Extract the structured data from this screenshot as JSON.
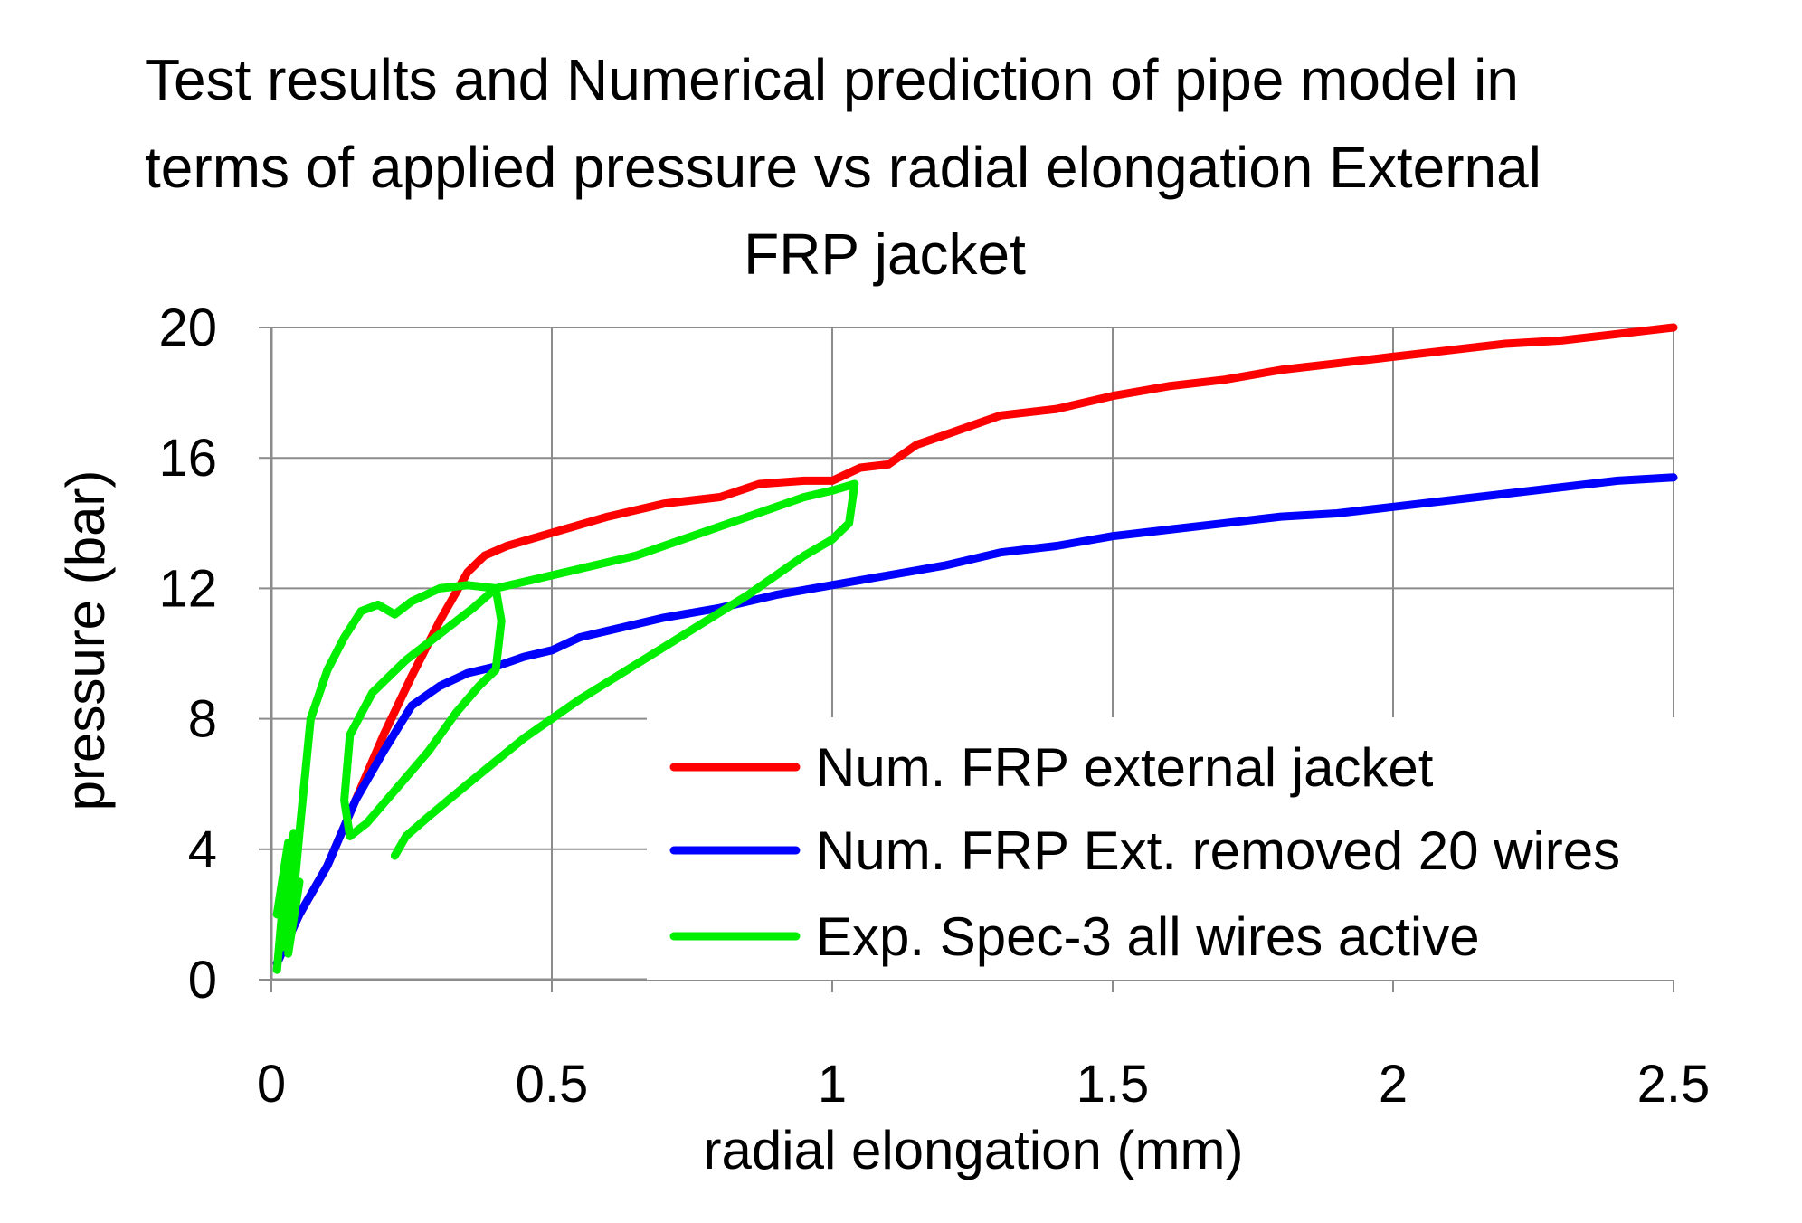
{
  "chart_data": {
    "type": "line",
    "title_lines": [
      "Test results and Numerical prediction of pipe model  in",
      "terms of applied pressure vs radial elongation External",
      "FRP jacket"
    ],
    "xlabel": "radial elongation (mm)",
    "ylabel": "pressure (bar)",
    "xlim": [
      0,
      2.5
    ],
    "ylim": [
      0,
      20
    ],
    "xticks": [
      0,
      0.5,
      1,
      1.5,
      2,
      2.5
    ],
    "xtick_labels": [
      "0",
      "0.5",
      "1",
      "1.5",
      "2",
      "2.5"
    ],
    "yticks": [
      0,
      4,
      8,
      12,
      16,
      20
    ],
    "ytick_labels": [
      "0",
      "4",
      "8",
      "12",
      "16",
      "20"
    ],
    "grid": true,
    "legend_position": "bottom-right",
    "series": [
      {
        "name": "Num. FRP external jacket",
        "color": "#ff0000",
        "x": [
          0.01,
          0.05,
          0.1,
          0.15,
          0.2,
          0.25,
          0.3,
          0.35,
          0.38,
          0.42,
          0.5,
          0.6,
          0.7,
          0.8,
          0.87,
          0.95,
          1.0,
          1.05,
          1.1,
          1.15,
          1.2,
          1.3,
          1.4,
          1.5,
          1.6,
          1.7,
          1.8,
          1.9,
          2.0,
          2.1,
          2.2,
          2.3,
          2.4,
          2.5
        ],
        "y": [
          0.5,
          2.0,
          3.5,
          5.5,
          7.5,
          9.3,
          11.0,
          12.5,
          13.0,
          13.3,
          13.7,
          14.2,
          14.6,
          14.8,
          15.2,
          15.3,
          15.3,
          15.7,
          15.8,
          16.4,
          16.7,
          17.3,
          17.5,
          17.9,
          18.2,
          18.4,
          18.7,
          18.9,
          19.1,
          19.3,
          19.5,
          19.6,
          19.8,
          20.0
        ]
      },
      {
        "name": "Num. FRP Ext. removed 20 wires",
        "color": "#0000ff",
        "x": [
          0.01,
          0.05,
          0.1,
          0.15,
          0.2,
          0.25,
          0.3,
          0.35,
          0.4,
          0.45,
          0.5,
          0.55,
          0.6,
          0.7,
          0.8,
          0.9,
          1.0,
          1.1,
          1.2,
          1.3,
          1.4,
          1.5,
          1.6,
          1.7,
          1.8,
          1.9,
          2.0,
          2.1,
          2.2,
          2.3,
          2.4,
          2.5
        ],
        "y": [
          0.5,
          2.0,
          3.5,
          5.5,
          7.0,
          8.4,
          9.0,
          9.4,
          9.6,
          9.9,
          10.1,
          10.5,
          10.7,
          11.1,
          11.4,
          11.8,
          12.1,
          12.4,
          12.7,
          13.1,
          13.3,
          13.6,
          13.8,
          14.0,
          14.2,
          14.3,
          14.5,
          14.7,
          14.9,
          15.1,
          15.3,
          15.4
        ]
      },
      {
        "name": "Exp. Spec-3 all wires active",
        "color": "#00ee00",
        "x": [
          0.01,
          0.03,
          0.01,
          0.04,
          0.02,
          0.05,
          0.03,
          0.05,
          0.07,
          0.1,
          0.13,
          0.16,
          0.19,
          0.22,
          0.25,
          0.3,
          0.35,
          0.4,
          0.41,
          0.4,
          0.37,
          0.33,
          0.28,
          0.22,
          0.17,
          0.14,
          0.13,
          0.14,
          0.18,
          0.24,
          0.3,
          0.36,
          0.4,
          0.45,
          0.55,
          0.65,
          0.75,
          0.85,
          0.95,
          1.0,
          1.04,
          1.03,
          1.0,
          0.95,
          0.85,
          0.7,
          0.55,
          0.45,
          0.35,
          0.28,
          0.24,
          0.22
        ],
        "y": [
          0.3,
          4.2,
          2.0,
          4.5,
          1.0,
          3.0,
          0.8,
          4.5,
          8.0,
          9.5,
          10.5,
          11.3,
          11.5,
          11.2,
          11.6,
          12.0,
          12.1,
          12.0,
          11.0,
          9.5,
          9.0,
          8.2,
          7.0,
          5.8,
          4.8,
          4.4,
          5.5,
          7.5,
          8.8,
          9.8,
          10.6,
          11.4,
          12.0,
          12.2,
          12.6,
          13.0,
          13.6,
          14.2,
          14.8,
          15.0,
          15.2,
          14.0,
          13.5,
          13.0,
          11.8,
          10.2,
          8.6,
          7.4,
          6.0,
          5.0,
          4.4,
          3.8
        ]
      }
    ]
  }
}
